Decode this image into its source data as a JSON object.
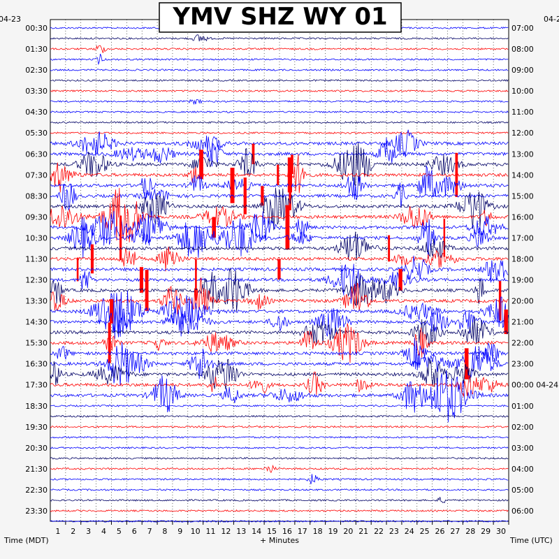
{
  "chart_data": {
    "type": "helicorder",
    "title": "YMV SHZ WY 01",
    "xlabel": "+ Minutes",
    "left_axis_label": "Time (MDT)",
    "right_axis_label": "Time (UTC)",
    "left_date": "04-23",
    "right_date": "04-2",
    "right_date_change": "04-24",
    "x_ticks": [
      "1",
      "2",
      "3",
      "4",
      "5",
      "6",
      "7",
      "8",
      "9",
      "10",
      "11",
      "12",
      "13",
      "14",
      "15",
      "16",
      "17",
      "18",
      "19",
      "20",
      "21",
      "22",
      "23",
      "24",
      "25",
      "26",
      "27",
      "28",
      "29",
      "30"
    ],
    "xlim": [
      0,
      30
    ],
    "left_ticks": [
      "00:30",
      "01:30",
      "02:30",
      "03:30",
      "04:30",
      "05:30",
      "06:30",
      "07:30",
      "08:30",
      "09:30",
      "10:30",
      "11:30",
      "12:30",
      "13:30",
      "14:30",
      "15:30",
      "16:30",
      "17:30",
      "18:30",
      "19:30",
      "20:30",
      "21:30",
      "22:30",
      "23:30"
    ],
    "right_ticks": [
      "07:00",
      "08:00",
      "09:00",
      "10:00",
      "11:00",
      "12:00",
      "13:00",
      "14:00",
      "15:00",
      "16:00",
      "17:00",
      "18:00",
      "19:00",
      "20:00",
      "21:00",
      "22:00",
      "23:00",
      "00:00",
      "01:00",
      "02:00",
      "03:00",
      "04:00",
      "05:00",
      "06:00"
    ],
    "rows": 48,
    "minutes_per_row": 30,
    "trace_colors": [
      "#0000ff",
      "#000066",
      "#ff0000",
      "#0000ff"
    ],
    "clip_color": "#ff0000",
    "activity_hours_mdt": [
      5.5,
      17.5
    ],
    "grid": true
  }
}
